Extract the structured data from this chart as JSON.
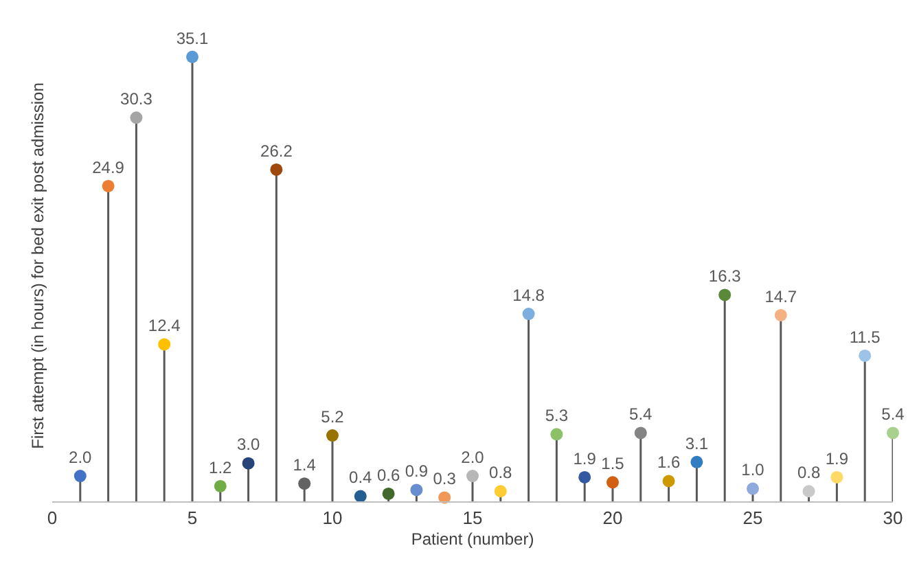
{
  "chart_data": {
    "type": "lollipop",
    "xlabel": "Patient (number)",
    "ylabel": "First attempt (in hours) for bed exit post admission",
    "x": [
      1,
      2,
      3,
      4,
      5,
      6,
      7,
      8,
      9,
      10,
      11,
      12,
      13,
      14,
      15,
      16,
      17,
      18,
      19,
      20,
      21,
      22,
      23,
      24,
      25,
      26,
      27,
      28,
      29,
      30
    ],
    "values": [
      2.0,
      24.9,
      30.3,
      12.4,
      35.1,
      1.2,
      3.0,
      26.2,
      1.4,
      5.2,
      0.4,
      0.6,
      0.9,
      0.3,
      2.0,
      0.8,
      14.8,
      5.3,
      1.9,
      1.5,
      5.4,
      1.6,
      3.1,
      16.3,
      1.0,
      14.7,
      0.8,
      1.9,
      11.5,
      5.4
    ],
    "colors": [
      "#4472c4",
      "#ed7d31",
      "#a5a5a5",
      "#ffc000",
      "#5b9bd5",
      "#70ad47",
      "#264478",
      "#9e480e",
      "#636363",
      "#997300",
      "#255e91",
      "#43682b",
      "#698ed0",
      "#f1975a",
      "#b7b7b7",
      "#ffcd33",
      "#7cafdd",
      "#8cc168",
      "#335aa1",
      "#d26012",
      "#848484",
      "#cc9a00",
      "#327dc2",
      "#5a8a39",
      "#8faadc",
      "#f4b183",
      "#c9c9c9",
      "#ffd966",
      "#9dc3e6",
      "#a9d18e"
    ],
    "value_labels": [
      "2.0",
      "24.9",
      "30.3",
      "12.4",
      "35.1",
      "1.2",
      "3.0",
      "26.2",
      "1.4",
      "5.2",
      "0.4",
      "0.6",
      "0.9",
      "0.3",
      "2.0",
      "0.8",
      "14.8",
      "5.3",
      "1.9",
      "1.5",
      "5.4",
      "1.6",
      "3.1",
      "16.3",
      "1.0",
      "14.7",
      "0.8",
      "1.9",
      "11.5",
      "5.4"
    ],
    "marker": "circle",
    "xlim": [
      0,
      30
    ],
    "xticks": [
      0,
      5,
      10,
      15,
      20,
      25,
      30
    ]
  }
}
